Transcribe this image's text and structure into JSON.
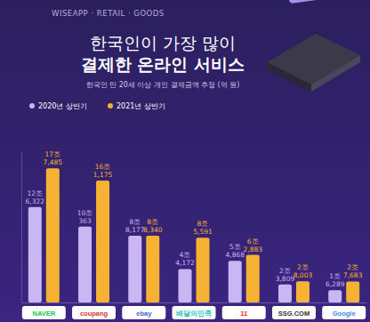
{
  "chart_data": {
    "type": "bar",
    "header": "WISEAPP · RETAIL · GOODS",
    "title": [
      "한국인이 가장 많이",
      "결제한 온라인 서비스"
    ],
    "subtitle": "한국인 만 20세 이상 개인 결제금액 추정 (억 원)",
    "categories": [
      "NAVER",
      "coupang",
      "ebay",
      "배달의민족",
      "11",
      "SSG.COM",
      "Google"
    ],
    "series": [
      {
        "name": "2020년 상반기",
        "color": "#c9b6f2",
        "values": [
          126322,
          100363,
          88177,
          44172,
          54868,
          23809,
          16289
        ],
        "value_labels": [
          "12조 6,322",
          "10조 363",
          "8조 8,177",
          "4조 4,172",
          "5조 4,868",
          "2조 3,809",
          "1조 6,289"
        ]
      },
      {
        "name": "2021년 상반기",
        "color": "#f6b233",
        "values": [
          177485,
          161175,
          88340,
          85591,
          62883,
          28003,
          27683
        ],
        "value_labels": [
          "17조 7,485",
          "16조 1,175",
          "8조 8,340",
          "8조 5,591",
          "6조 2,883",
          "2조 8,003",
          "2조 7,683"
        ]
      }
    ],
    "ylim": [
      0,
      200000
    ],
    "tick_labels": false,
    "data_labels": true,
    "legend": "top-left"
  }
}
